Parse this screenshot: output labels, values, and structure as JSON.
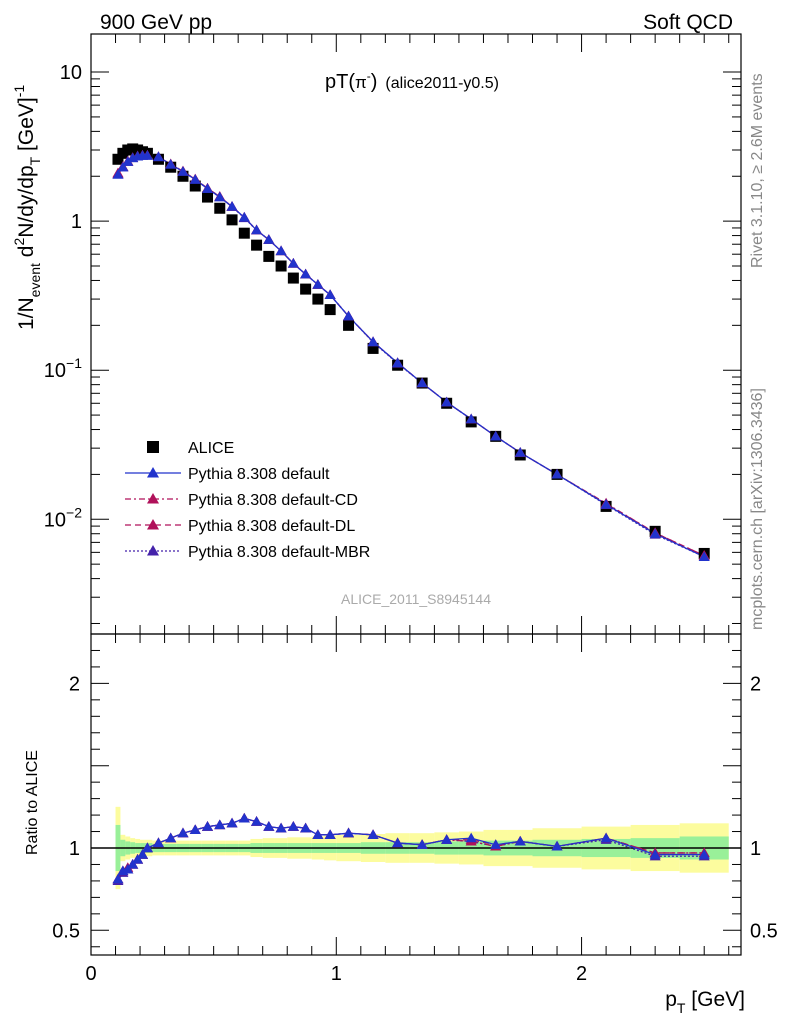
{
  "header": {
    "left": "900 GeV pp",
    "right": "Soft QCD"
  },
  "side": {
    "rivet": "Rivet 3.1.10, ≥ 2.6M events",
    "mcplots": "mcplots.cern.ch [arXiv:1306.3436]"
  },
  "title": {
    "pre": "pT(",
    "main": "π",
    "sup": "-",
    "post": ")",
    "tag": "(alice2011-y0.5)"
  },
  "watermark": "ALICE_2011_S8945144",
  "ylabel_top": {
    "a": "1/N",
    "a_sub": "event",
    "b": " d",
    "b_sup": "2",
    "c": "N/dy/dp",
    "c_sub": "T",
    "d": " [GeV]",
    "d_sup": "-1"
  },
  "ylabel_bottom": "Ratio to ALICE",
  "xlabel": {
    "a": "p",
    "a_sub": "T",
    "b": " [GeV]"
  },
  "legend": [
    {
      "label": "ALICE",
      "color": "#000000",
      "marker": "square",
      "dash": ""
    },
    {
      "label": "Pythia 8.308 default",
      "color": "#2233cc",
      "marker": "triangle",
      "dash": ""
    },
    {
      "label": "Pythia 8.308 default-CD",
      "color": "#b0115a",
      "marker": "triangle",
      "dash": "6 3 2 3"
    },
    {
      "label": "Pythia 8.308 default-DL",
      "color": "#b0115a",
      "marker": "triangle",
      "dash": "6 4"
    },
    {
      "label": "Pythia 8.308 default-MBR",
      "color": "#4422aa",
      "marker": "triangle",
      "dash": "2 2"
    }
  ],
  "chart_data": {
    "type": "scatter",
    "x_range": [
      0,
      2.65
    ],
    "y_range_top": [
      0.0017,
      18
    ],
    "y_scale_top": "log",
    "y_range_bottom": [
      0.35,
      2.3
    ],
    "x_ticks": [
      {
        "value": 0,
        "label": "0"
      },
      {
        "value": 1,
        "label": "1"
      },
      {
        "value": 2,
        "label": "2"
      }
    ],
    "y_ticks_top": [
      {
        "value": 10,
        "mant": "10",
        "exp": ""
      },
      {
        "value": 1,
        "mant": "1",
        "exp": ""
      },
      {
        "value": 0.1,
        "mant": "10",
        "exp": "−1"
      },
      {
        "value": 0.01,
        "mant": "10",
        "exp": "−2"
      }
    ],
    "y_ticks_bottom": [
      {
        "value": 0.5,
        "label": "0.5"
      },
      {
        "value": 1,
        "label": "1"
      },
      {
        "value": 2,
        "label": "2"
      }
    ],
    "x": [
      0.11,
      0.13,
      0.15,
      0.17,
      0.19,
      0.21,
      0.23,
      0.275,
      0.325,
      0.375,
      0.425,
      0.475,
      0.525,
      0.575,
      0.625,
      0.675,
      0.725,
      0.775,
      0.825,
      0.875,
      0.925,
      0.975,
      1.05,
      1.15,
      1.25,
      1.35,
      1.45,
      1.55,
      1.65,
      1.75,
      1.9,
      2.1,
      2.3,
      2.5
    ],
    "series": [
      {
        "name": "ALICE",
        "values": [
          2.6,
          2.85,
          3.0,
          3.05,
          3.0,
          2.92,
          2.85,
          2.6,
          2.3,
          2.0,
          1.72,
          1.45,
          1.22,
          1.02,
          0.83,
          0.69,
          0.58,
          0.5,
          0.415,
          0.35,
          0.3,
          0.255,
          0.2,
          0.14,
          0.108,
          0.082,
          0.06,
          0.045,
          0.036,
          0.027,
          0.02,
          0.0122,
          0.0083,
          0.0059
        ]
      },
      {
        "name": "Pythia 8.308 default",
        "values": [
          2.05,
          2.3,
          2.5,
          2.65,
          2.72,
          2.75,
          2.75,
          2.7,
          2.4,
          2.15,
          1.9,
          1.65,
          1.45,
          1.25,
          1.06,
          0.87,
          0.75,
          0.63,
          0.52,
          0.44,
          0.375,
          0.32,
          0.23,
          0.155,
          0.112,
          0.082,
          0.061,
          0.047,
          0.036,
          0.028,
          0.02,
          0.0126,
          0.008,
          0.0056
        ]
      },
      {
        "name": "Pythia 8.308 default-CD",
        "values": [
          2.1,
          2.32,
          2.52,
          2.66,
          2.73,
          2.76,
          2.76,
          2.7,
          2.41,
          2.16,
          1.91,
          1.66,
          1.46,
          1.25,
          1.06,
          0.87,
          0.75,
          0.63,
          0.52,
          0.44,
          0.375,
          0.32,
          0.23,
          0.155,
          0.112,
          0.082,
          0.061,
          0.047,
          0.036,
          0.028,
          0.02,
          0.0128,
          0.0081,
          0.0057
        ]
      },
      {
        "name": "Pythia 8.308 default-DL",
        "values": [
          2.08,
          2.31,
          2.51,
          2.66,
          2.73,
          2.76,
          2.76,
          2.7,
          2.41,
          2.16,
          1.91,
          1.66,
          1.46,
          1.25,
          1.06,
          0.87,
          0.75,
          0.63,
          0.52,
          0.44,
          0.375,
          0.32,
          0.23,
          0.155,
          0.112,
          0.082,
          0.061,
          0.047,
          0.036,
          0.028,
          0.02,
          0.0127,
          0.0081,
          0.0057
        ]
      },
      {
        "name": "Pythia 8.308 default-MBR",
        "values": [
          2.06,
          2.3,
          2.5,
          2.65,
          2.72,
          2.75,
          2.75,
          2.69,
          2.4,
          2.15,
          1.9,
          1.65,
          1.45,
          1.25,
          1.05,
          0.87,
          0.75,
          0.63,
          0.52,
          0.44,
          0.375,
          0.32,
          0.23,
          0.154,
          0.111,
          0.082,
          0.061,
          0.047,
          0.036,
          0.028,
          0.02,
          0.0125,
          0.0079,
          0.0056
        ]
      }
    ],
    "ratio_series": [
      {
        "name": "Pythia 8.308 default",
        "values": [
          0.81,
          0.86,
          0.87,
          0.9,
          0.93,
          0.96,
          1.0,
          1.03,
          1.06,
          1.09,
          1.11,
          1.13,
          1.14,
          1.15,
          1.18,
          1.16,
          1.13,
          1.12,
          1.13,
          1.12,
          1.08,
          1.08,
          1.09,
          1.08,
          1.03,
          1.02,
          1.05,
          1.06,
          1.02,
          1.04,
          1.01,
          1.06,
          0.96,
          0.96
        ]
      },
      {
        "name": "Pythia 8.308 default-CD",
        "values": [
          0.81,
          0.86,
          0.88,
          0.9,
          0.93,
          0.96,
          1.0,
          1.03,
          1.06,
          1.09,
          1.11,
          1.13,
          1.14,
          1.15,
          1.18,
          1.16,
          1.13,
          1.12,
          1.13,
          1.12,
          1.08,
          1.08,
          1.09,
          1.08,
          1.03,
          1.02,
          1.05,
          1.04,
          1.01,
          1.04,
          1.01,
          1.06,
          0.97,
          0.97
        ]
      },
      {
        "name": "Pythia 8.308 default-DL",
        "values": [
          0.81,
          0.86,
          0.87,
          0.9,
          0.93,
          0.96,
          1.0,
          1.03,
          1.06,
          1.09,
          1.11,
          1.13,
          1.14,
          1.15,
          1.18,
          1.16,
          1.13,
          1.12,
          1.13,
          1.12,
          1.08,
          1.08,
          1.09,
          1.08,
          1.03,
          1.02,
          1.05,
          1.05,
          1.02,
          1.04,
          1.01,
          1.06,
          0.97,
          0.97
        ]
      },
      {
        "name": "Pythia 8.308 default-MBR",
        "values": [
          0.8,
          0.85,
          0.87,
          0.9,
          0.93,
          0.96,
          1.0,
          1.03,
          1.06,
          1.09,
          1.11,
          1.13,
          1.14,
          1.15,
          1.18,
          1.16,
          1.13,
          1.12,
          1.13,
          1.12,
          1.08,
          1.08,
          1.09,
          1.08,
          1.03,
          1.02,
          1.05,
          1.04,
          1.01,
          1.04,
          1.01,
          1.05,
          0.95,
          0.95
        ]
      }
    ],
    "ratio_bands": {
      "x_edges": [
        0.1,
        0.12,
        0.14,
        0.16,
        0.18,
        0.2,
        0.22,
        0.25,
        0.3,
        0.35,
        0.4,
        0.45,
        0.5,
        0.55,
        0.6,
        0.65,
        0.7,
        0.75,
        0.8,
        0.85,
        0.9,
        0.95,
        1.0,
        1.1,
        1.2,
        1.3,
        1.4,
        1.5,
        1.6,
        1.7,
        1.8,
        2.0,
        2.2,
        2.4,
        2.6
      ],
      "stat": [
        0.14,
        0.05,
        0.04,
        0.035,
        0.03,
        0.03,
        0.03,
        0.025,
        0.025,
        0.025,
        0.025,
        0.025,
        0.025,
        0.025,
        0.025,
        0.03,
        0.03,
        0.03,
        0.03,
        0.03,
        0.03,
        0.03,
        0.03,
        0.035,
        0.035,
        0.035,
        0.04,
        0.04,
        0.045,
        0.045,
        0.05,
        0.055,
        0.06,
        0.07
      ],
      "total": [
        0.25,
        0.08,
        0.07,
        0.06,
        0.055,
        0.05,
        0.05,
        0.045,
        0.045,
        0.045,
        0.045,
        0.045,
        0.045,
        0.045,
        0.045,
        0.055,
        0.06,
        0.06,
        0.065,
        0.065,
        0.07,
        0.075,
        0.08,
        0.085,
        0.09,
        0.09,
        0.095,
        0.1,
        0.11,
        0.11,
        0.12,
        0.13,
        0.14,
        0.15
      ],
      "stat_color": "#99f099",
      "total_color": "#fcfc9e"
    }
  }
}
